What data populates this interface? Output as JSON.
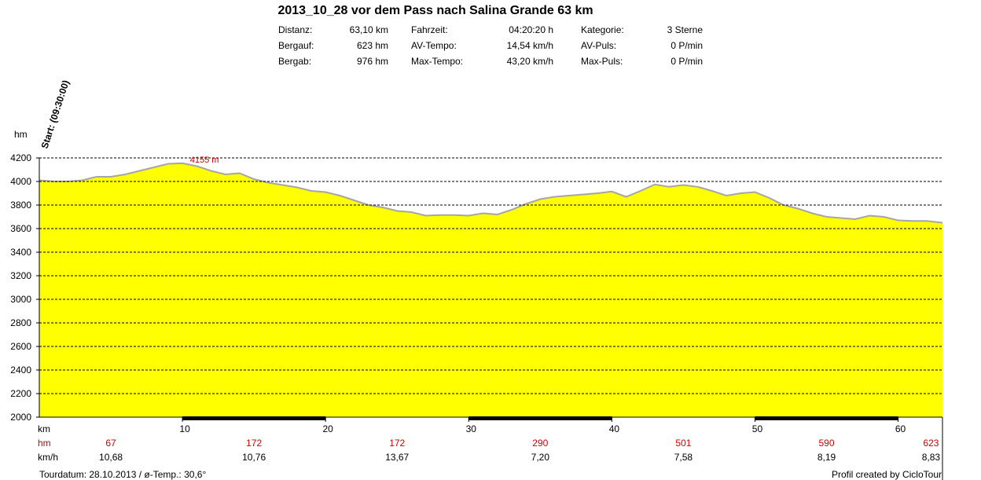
{
  "title": "2013_10_28 vor dem Pass nach Salina Grande 63 km",
  "stats": [
    {
      "label": "Distanz:",
      "value": "63,10 km"
    },
    {
      "label": "Fahrzeit:",
      "value": "04:20:20 h"
    },
    {
      "label": "Kategorie:",
      "value": "3 Sterne"
    },
    {
      "label": "Bergauf:",
      "value": "623 hm"
    },
    {
      "label": "AV-Tempo:",
      "value": "14,54 km/h"
    },
    {
      "label": "AV-Puls:",
      "value": "0 P/min"
    },
    {
      "label": "Bergab:",
      "value": "976 hm"
    },
    {
      "label": "Max-Tempo:",
      "value": "43,20 km/h"
    },
    {
      "label": "Max-Puls:",
      "value": "0 P/min"
    }
  ],
  "footer": {
    "left": "Tourdatum: 28.10.2013  /  ø-Temp.: 30,6°",
    "right": "Profil created by CicloTour"
  },
  "colors": {
    "fill": "#ffff00",
    "profile_line": "#a6a6a6",
    "accent_red": "#cc0000",
    "grid": "#000000"
  },
  "chart_data": {
    "type": "area",
    "title": "",
    "xlabel": "km",
    "ylabel": "hm",
    "xlim": [
      0,
      63.1
    ],
    "ylim": [
      2000,
      4200
    ],
    "grid": true,
    "x_ticks": [
      10,
      20,
      30,
      40,
      50,
      60
    ],
    "y_ticks": [
      2000,
      2200,
      2400,
      2600,
      2800,
      3000,
      3200,
      3400,
      3600,
      3800,
      4000,
      4200
    ],
    "start_label": "Start: (09:30:00)",
    "max_annotation": {
      "x": 10,
      "y": 4155,
      "text": "4155 m"
    },
    "profile": {
      "x": [
        0,
        1,
        2,
        3,
        4,
        5,
        6,
        7,
        8,
        9,
        10,
        11,
        12,
        13,
        14,
        15,
        16,
        17,
        18,
        19,
        20,
        21,
        22,
        23,
        24,
        25,
        26,
        27,
        28,
        29,
        30,
        31,
        32,
        33,
        34,
        35,
        36,
        37,
        38,
        39,
        40,
        41,
        42,
        43,
        44,
        45,
        46,
        47,
        48,
        49,
        50,
        51,
        52,
        53,
        54,
        55,
        56,
        57,
        58,
        59,
        60,
        61,
        62,
        63.1
      ],
      "y": [
        4010,
        4000,
        4000,
        4010,
        4040,
        4040,
        4060,
        4090,
        4120,
        4150,
        4155,
        4130,
        4090,
        4060,
        4070,
        4020,
        3990,
        3970,
        3950,
        3920,
        3910,
        3880,
        3840,
        3800,
        3780,
        3750,
        3740,
        3710,
        3715,
        3715,
        3710,
        3730,
        3720,
        3760,
        3810,
        3850,
        3870,
        3880,
        3890,
        3900,
        3915,
        3870,
        3920,
        3975,
        3955,
        3970,
        3955,
        3920,
        3880,
        3900,
        3910,
        3860,
        3800,
        3770,
        3730,
        3700,
        3690,
        3680,
        3710,
        3700,
        3670,
        3665,
        3665,
        3650
      ]
    },
    "climb_segments": [
      {
        "from": 10,
        "to": 20
      },
      {
        "from": 30,
        "to": 40
      },
      {
        "from": 50,
        "to": 60
      }
    ],
    "rows": {
      "hm": {
        "label": "hm",
        "values": [
          "67",
          "172",
          "172",
          "290",
          "501",
          "590",
          "623"
        ]
      },
      "kmh": {
        "label": "km/h",
        "values": [
          "10,68",
          "10,76",
          "13,67",
          "7,20",
          "7,58",
          "8,19",
          "8,83"
        ]
      }
    }
  }
}
